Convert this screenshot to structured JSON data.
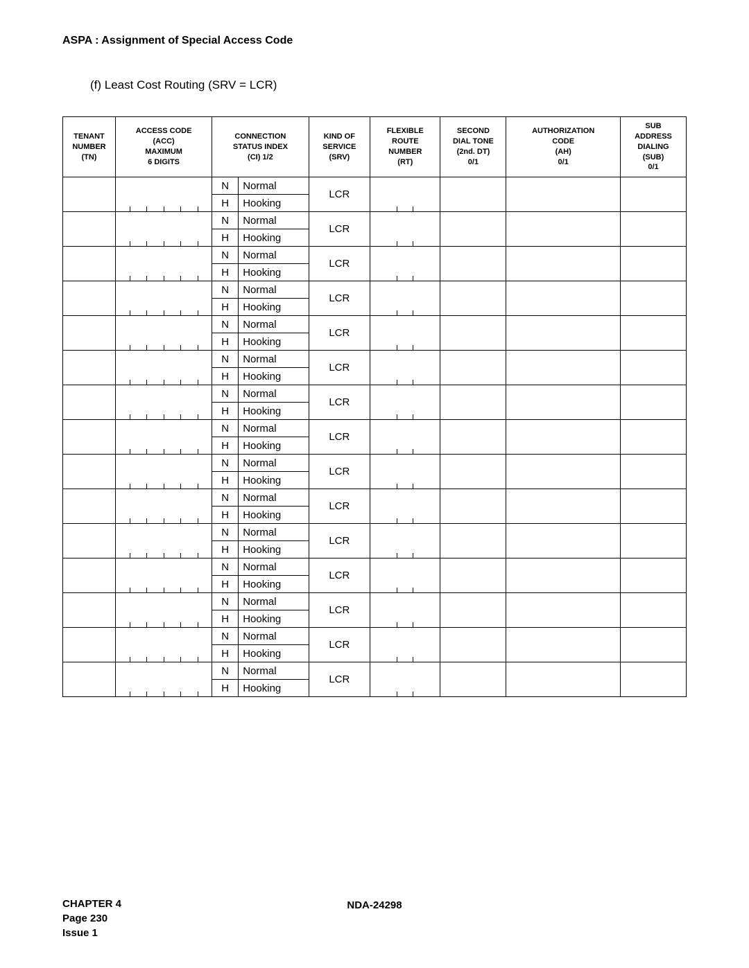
{
  "header": {
    "title": "ASPA : Assignment of Special Access Code",
    "subtitle": "(f)   Least Cost Routing (SRV = LCR)"
  },
  "table": {
    "columns": [
      "TENANT\nNUMBER\n(TN)",
      "ACCESS CODE\n(ACC)\nMAXIMUM\n6 DIGITS",
      "CONNECTION\nSTATUS INDEX\n(CI) 1/2",
      "KIND OF\nSERVICE\n(SRV)",
      "FLEXIBLE\nROUTE\nNUMBER\n(RT)",
      "SECOND\nDIAL TONE\n(2nd. DT)\n0/1",
      "AUTHORIZATION\nCODE\n(AH)\n0/1",
      "SUB\nADDRESS\nDIALING\n(SUB)\n0/1"
    ],
    "row_count": 15,
    "row_pattern": {
      "ci_n_code": "N",
      "ci_n_label": "Normal",
      "ci_h_code": "H",
      "ci_h_label": "Hooking",
      "srv": "LCR",
      "acc_ticks": 5,
      "rt_ticks": 2
    }
  },
  "footer": {
    "chapter": "CHAPTER 4",
    "page": "Page 230",
    "issue": "Issue 1",
    "doc": "NDA-24298"
  },
  "style": {
    "background_color": "#ffffff",
    "text_color": "#000000",
    "border_color": "#000000",
    "header_fontsize": 11,
    "cell_fontsize": 15
  }
}
